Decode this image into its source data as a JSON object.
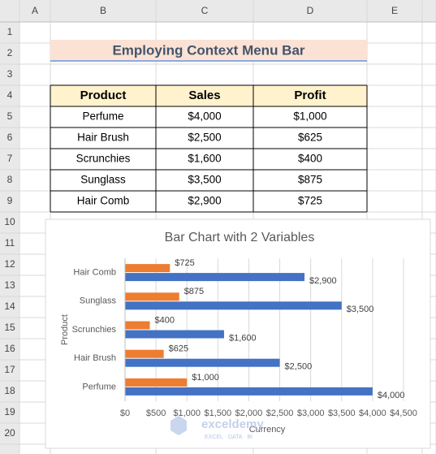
{
  "columns": [
    "A",
    "B",
    "C",
    "D",
    "E"
  ],
  "rows": [
    1,
    2,
    3,
    4,
    5,
    6,
    7,
    8,
    9,
    10,
    11,
    12,
    13,
    14,
    15,
    16,
    17,
    18,
    19,
    20
  ],
  "title": "Employing Context Menu Bar",
  "table": {
    "header": [
      "Product",
      "Sales",
      "Profit"
    ],
    "rows": [
      [
        "Perfume",
        "$4,000",
        "$1,000"
      ],
      [
        "Hair Brush",
        "$2,500",
        "$625"
      ],
      [
        "Scrunchies",
        "$1,600",
        "$400"
      ],
      [
        "Sunglass",
        "$3,500",
        "$875"
      ],
      [
        "Hair Comb",
        "$2,900",
        "$725"
      ]
    ]
  },
  "chart_data": {
    "type": "hbar",
    "title": "Bar Chart with 2 Variables",
    "x_label": "Currency",
    "y_label": "Product",
    "categories": [
      "Perfume",
      "Hair Brush",
      "Scrunchies",
      "Sunglass",
      "Hair Comb"
    ],
    "series": [
      {
        "color": "#4472c4",
        "values": [
          4000,
          2500,
          1600,
          3500,
          2900
        ],
        "value_labels": [
          "$4,000",
          "$2,500",
          "$1,600",
          "$3,500",
          "$2,900"
        ]
      },
      {
        "color": "#ed7d31",
        "values": [
          1000,
          625,
          400,
          875,
          725
        ],
        "value_labels": [
          "$1,000",
          "$625",
          "$400",
          "$875",
          "$725"
        ]
      }
    ],
    "xlim": [
      0,
      4500
    ],
    "xticks": [
      {
        "value": 0,
        "label": "$0"
      },
      {
        "value": 500,
        "label": "$500"
      },
      {
        "value": 1000,
        "label": "$1,000"
      },
      {
        "value": 1500,
        "label": "$1,500"
      },
      {
        "value": 2000,
        "label": "$2,000"
      },
      {
        "value": 2500,
        "label": "$2,500"
      },
      {
        "value": 3000,
        "label": "$3,000"
      },
      {
        "value": 3500,
        "label": "$3,500"
      },
      {
        "value": 4000,
        "label": "$4,000"
      },
      {
        "value": 4500,
        "label": "$4,500"
      }
    ],
    "grid": true
  },
  "watermark": {
    "name": "exceldemy",
    "tagline": "EXCEL · DATA · BI"
  }
}
